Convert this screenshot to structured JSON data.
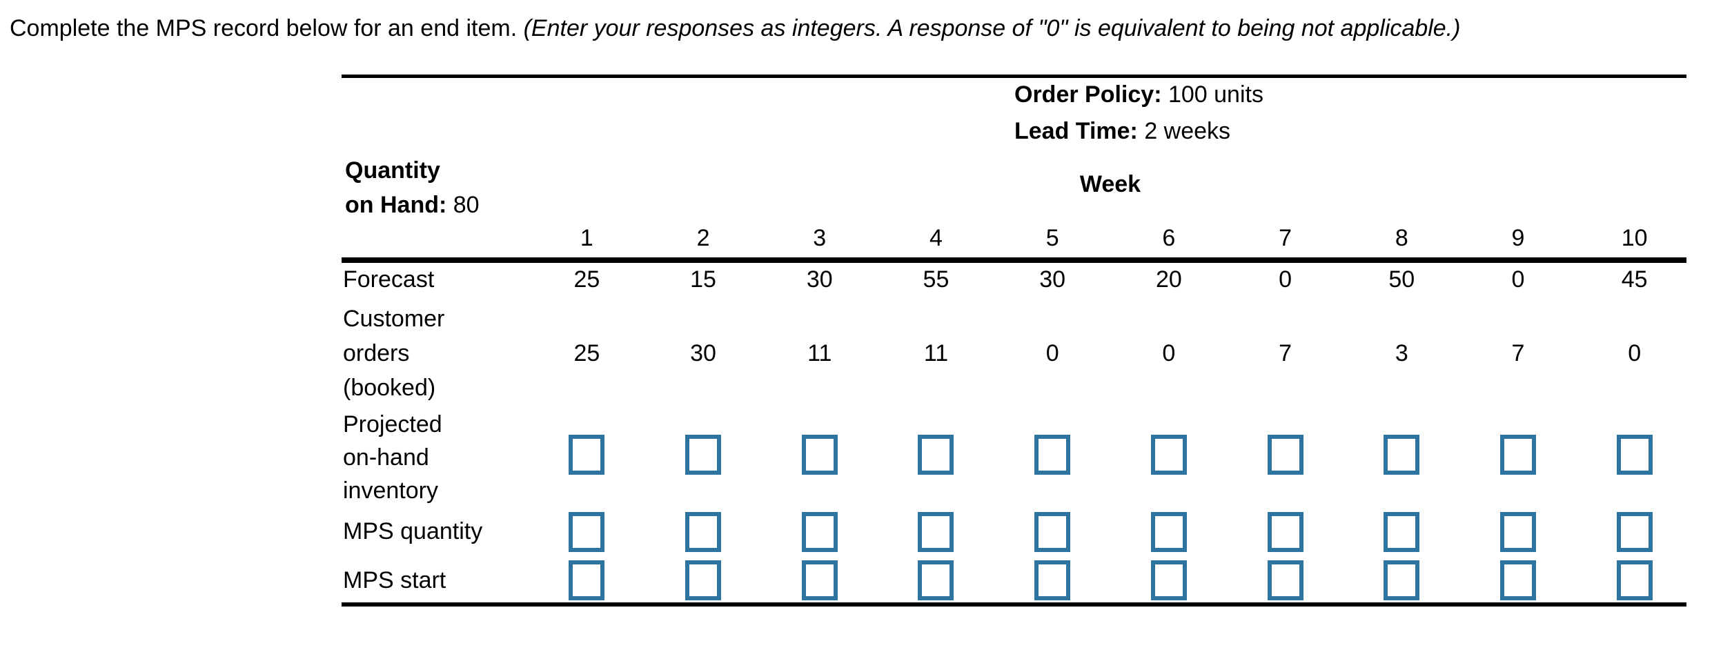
{
  "instruction": {
    "main": "Complete the MPS record below for an end item.",
    "note": "(Enter your responses as integers. A response of \"0\" is equivalent to being not applicable.)"
  },
  "header": {
    "order_policy_label": "Order Policy:",
    "order_policy_value": "100 units",
    "lead_time_label": "Lead Time:",
    "lead_time_value": "2 weeks",
    "quantity_on_hand_label_line1": "Quantity",
    "quantity_on_hand_label_line2": "on Hand:",
    "quantity_on_hand_value": "80",
    "week_label": "Week",
    "week_numbers": [
      "1",
      "2",
      "3",
      "4",
      "5",
      "6",
      "7",
      "8",
      "9",
      "10"
    ]
  },
  "rows": {
    "forecast": {
      "label": "Forecast",
      "values": [
        "25",
        "15",
        "30",
        "55",
        "30",
        "20",
        "0",
        "50",
        "0",
        "45"
      ]
    },
    "customer_orders": {
      "label": "Customer\norders\n(booked)",
      "values": [
        "25",
        "30",
        "11",
        "11",
        "0",
        "0",
        "7",
        "3",
        "7",
        "0"
      ]
    },
    "projected_inventory": {
      "label": "Projected\non-hand\ninventory"
    },
    "mps_quantity": {
      "label": "MPS quantity"
    },
    "mps_start": {
      "label": "MPS start"
    }
  },
  "colors": {
    "input_border": "#2e74a0",
    "rule": "#000000",
    "text": "#000000",
    "background": "#ffffff"
  }
}
